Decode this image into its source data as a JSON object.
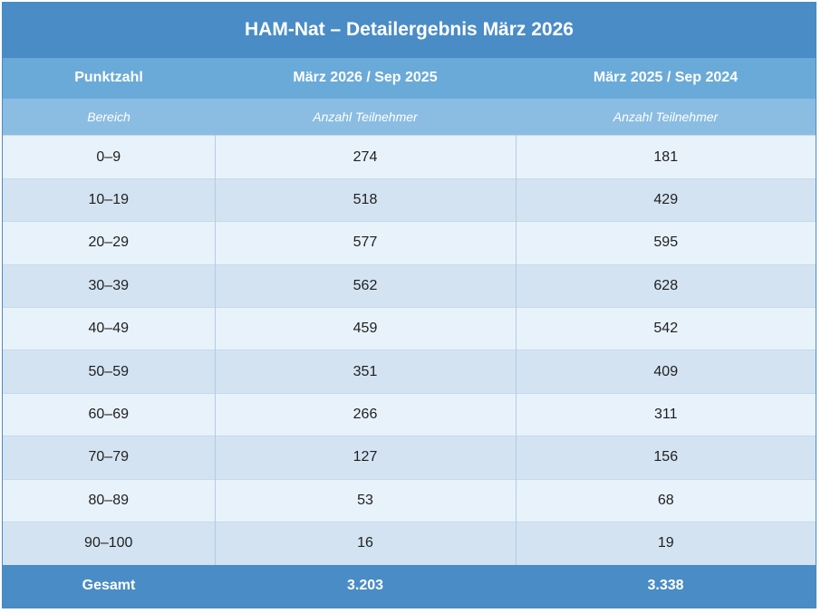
{
  "table": {
    "title": "HAM-Nat – Detailergebnis März 2026",
    "headers": [
      "Punktzahl",
      "März 2026 / Sep 2025",
      "März 2025 / Sep 2024"
    ],
    "subheaders": [
      "Bereich",
      "Anzahl Teilnehmer",
      "Anzahl Teilnehmer"
    ],
    "rows": [
      [
        "0–9",
        "274",
        "181"
      ],
      [
        "10–19",
        "518",
        "429"
      ],
      [
        "20–29",
        "577",
        "595"
      ],
      [
        "30–39",
        "562",
        "628"
      ],
      [
        "40–49",
        "459",
        "542"
      ],
      [
        "50–59",
        "351",
        "409"
      ],
      [
        "60–69",
        "266",
        "311"
      ],
      [
        "70–79",
        "127",
        "156"
      ],
      [
        "80–89",
        "53",
        "68"
      ],
      [
        "90–100",
        "16",
        "19"
      ]
    ],
    "total": [
      "Gesamt",
      "3.203",
      "3.338"
    ]
  },
  "colors": {
    "title_bg": "#4a8cc6",
    "header_bg": "#6aaad9",
    "subheader_bg": "#8bbde2",
    "row_light": "#e8f2fb",
    "row_dark": "#d3e3f1"
  }
}
